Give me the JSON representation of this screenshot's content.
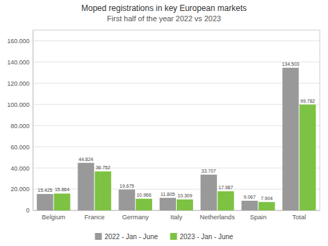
{
  "chart_data": {
    "type": "bar",
    "title": "Moped registrations in key European markets",
    "subtitle": "First half of the year  2022 vs 2023",
    "categories": [
      "Belgium",
      "France",
      "Germany",
      "Italy",
      "Netherlands",
      "Spain",
      "Total"
    ],
    "series": [
      {
        "name": "2022 - Jan - June",
        "color": "#999999",
        "values": [
          15425,
          44824,
          19675,
          11805,
          33707,
          9067,
          134503
        ],
        "value_labels": [
          "15.425",
          "44.824",
          "19.675",
          "11.805",
          "33.707",
          "9.067",
          "134.503"
        ]
      },
      {
        "name": "2023 - Jan - June",
        "color": "#7dc242",
        "values": [
          15864,
          36752,
          10966,
          10309,
          17987,
          7904,
          99782
        ],
        "value_labels": [
          "15.864",
          "36.752",
          "10.966",
          "10.309",
          "17.987",
          "7.904",
          "99.782"
        ]
      }
    ],
    "ylim": [
      0,
      170000
    ],
    "yticks": [
      0,
      {
        "value": 20000,
        "label": "20.000"
      },
      {
        "value": 40000,
        "label": "40.000"
      },
      {
        "value": 60000,
        "label": "60.000"
      },
      {
        "value": 80000,
        "label": "80.000"
      },
      {
        "value": 100000,
        "label": "100.000"
      },
      {
        "value": 120000,
        "label": "120.000"
      },
      {
        "value": 140000,
        "label": "140.000"
      },
      {
        "value": 160000,
        "label": "160.000"
      }
    ],
    "grid": true,
    "legend": "bottom",
    "data_labels": true
  }
}
